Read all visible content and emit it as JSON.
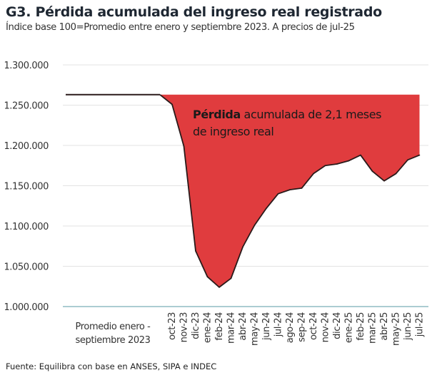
{
  "title": "G3. Pérdida acumulada del ingreso real registrado",
  "subtitle": "Índice base 100=Promedio entre enero y septiembre 2023. A precios de jul-25",
  "source": "Fuente: Equilibra con base en ANSES, SIPA e INDEC",
  "chart_data": {
    "type": "area",
    "ylim": [
      1000000,
      1300000
    ],
    "yticks": [
      "1.000.000",
      "1.050.000",
      "1.100.000",
      "1.150.000",
      "1.200.000",
      "1.250.000",
      "1.300.000"
    ],
    "ytick_values": [
      1000000,
      1050000,
      1100000,
      1150000,
      1200000,
      1250000,
      1300000
    ],
    "grid": true,
    "baseline_label": "Promedio enero - septiembre 2023",
    "baseline_label_lines": [
      "Promedio enero -",
      "septiembre 2023"
    ],
    "baseline_value": 1263000,
    "categories": [
      "oct-23",
      "nov-23",
      "dic-23",
      "ene-24",
      "feb-24",
      "mar-24",
      "abr-24",
      "may-24",
      "jun-24",
      "jul-24",
      "ago-24",
      "sep-24",
      "oct-24",
      "nov-24",
      "dic-24",
      "ene-25",
      "feb-25",
      "mar-25",
      "abr-25",
      "may-25",
      "jun-25",
      "jul-25"
    ],
    "values": [
      1251000,
      1199000,
      1069000,
      1037000,
      1024000,
      1035000,
      1074000,
      1101000,
      1122000,
      1140000,
      1145000,
      1147000,
      1165000,
      1175000,
      1177000,
      1181000,
      1188000,
      1168000,
      1156000,
      1165000,
      1182000,
      1188000
    ],
    "annotation": {
      "bold": "Pérdida",
      "rest_line1": " acumulada de 2,1 meses",
      "line2": "de ingreso real"
    },
    "colors": {
      "fill": "#e03c3e",
      "line": "#2a1a1a",
      "grid": "#e3e3e3",
      "axis": "#8fbcc4"
    }
  }
}
